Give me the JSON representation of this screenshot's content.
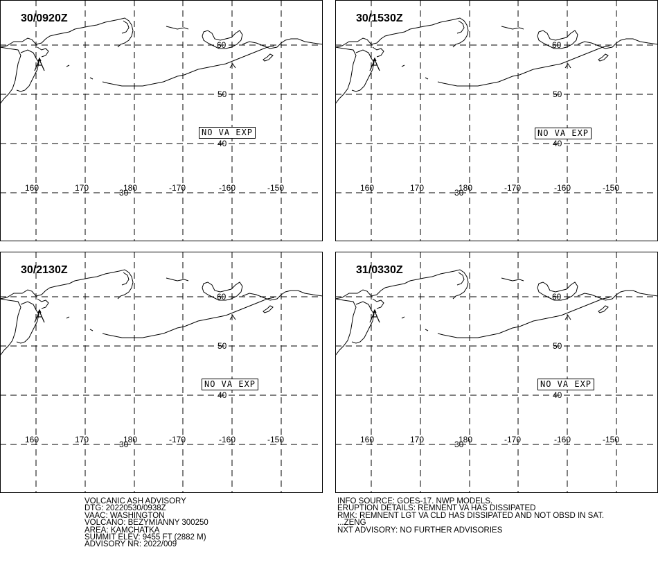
{
  "panels": [
    {
      "title": "30/0920Z",
      "status": "NO VA EXP"
    },
    {
      "title": "30/1530Z",
      "status": "NO VA EXP"
    },
    {
      "title": "30/2130Z",
      "status": "NO VA EXP"
    },
    {
      "title": "31/0330Z",
      "status": "NO VA EXP"
    }
  ],
  "grid": {
    "lat_labels": [
      "60",
      "50",
      "40",
      "30"
    ],
    "lon_labels": [
      "160",
      "170",
      "180",
      "-170",
      "-160",
      "-150"
    ]
  },
  "advisory_left": [
    "VOLCANIC ASH ADVISORY",
    "DTG: 20220530/0938Z",
    "VAAC: WASHINGTON",
    "VOLCANO: BEZYMIANNY 300250",
    "AREA: KAMCHATKA",
    "SUMMIT ELEV: 9455 FT (2882 M)",
    "ADVISORY NR: 2022/009"
  ],
  "advisory_right": [
    "INFO SOURCE: GOES-17. NWP MODELS.",
    "ERUPTION DETAILS: REMNENT VA HAS DISSIPATED",
    "RMK: REMNENT LGT VA CLD HAS DISSIPATED AND NOT OBSD IN SAT.",
    "...ZENG",
    "NXT ADVISORY: NO FURTHER ADVISORIES"
  ]
}
